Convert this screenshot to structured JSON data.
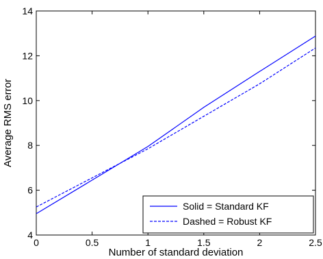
{
  "chart_data": {
    "type": "line",
    "title": "",
    "xlabel": "Number of standard deviation",
    "ylabel": "Average RMS error",
    "xlim": [
      0,
      2.5
    ],
    "ylim": [
      4,
      14
    ],
    "xticks": [
      0,
      0.5,
      1,
      1.5,
      2,
      2.5
    ],
    "xtick_labels": [
      "0",
      "0.5",
      "1",
      "1.5",
      "2",
      "2.5"
    ],
    "yticks": [
      4,
      6,
      8,
      10,
      12,
      14
    ],
    "ytick_labels": [
      "4",
      "6",
      "8",
      "10",
      "12",
      "14"
    ],
    "grid": false,
    "legend_position": "bottom-right",
    "series": [
      {
        "name": "Solid = Standard KF",
        "style": "solid",
        "color": "#0000ff",
        "x": [
          0,
          0.5,
          1,
          1.5,
          2,
          2.5
        ],
        "y": [
          4.95,
          6.45,
          7.95,
          9.7,
          11.3,
          12.88
        ]
      },
      {
        "name": "Dashed = Robust KF",
        "style": "dashed",
        "color": "#0000ff",
        "x": [
          0,
          0.5,
          1,
          1.5,
          2,
          2.5
        ],
        "y": [
          5.25,
          6.55,
          7.85,
          9.3,
          10.75,
          12.35
        ]
      }
    ]
  }
}
